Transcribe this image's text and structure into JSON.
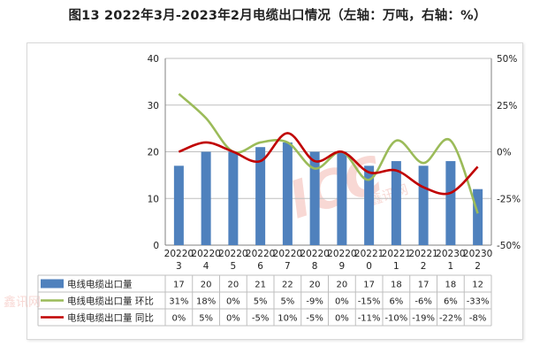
{
  "title": "图13  2022年3月-2023年2月电缆出口情况（左轴：万吨，右轴：%）",
  "watermark": {
    "main": "ICC",
    "sub": "鑫讯网"
  },
  "colors": {
    "bar": "#4f81bd",
    "mom": "#9bbb59",
    "yoy": "#c00000",
    "grid": "#bfbfbf",
    "axis": "#808080"
  },
  "chart_data": {
    "type": "bar",
    "categories": [
      [
        "20220",
        "3"
      ],
      [
        "20220",
        "4"
      ],
      [
        "20220",
        "5"
      ],
      [
        "20220",
        "6"
      ],
      [
        "20220",
        "7"
      ],
      [
        "20220",
        "8"
      ],
      [
        "20220",
        "9"
      ],
      [
        "20221",
        "0"
      ],
      [
        "20221",
        "1"
      ],
      [
        "20221",
        "2"
      ],
      [
        "20230",
        "1"
      ],
      [
        "20230",
        "2"
      ]
    ],
    "left_axis": {
      "ylim": [
        0,
        40
      ],
      "ticks": [
        "0",
        "10",
        "20",
        "30",
        "40"
      ]
    },
    "right_axis": {
      "ylim": [
        -50,
        50
      ],
      "ticks": [
        "-50%",
        "-25%",
        "0%",
        "25%",
        "50%"
      ]
    },
    "grid": true,
    "legend": "table-below",
    "series": [
      {
        "name": "电线电缆出口量",
        "type": "bar",
        "axis": "left",
        "values": [
          17,
          20,
          20,
          21,
          22,
          20,
          20,
          17,
          18,
          17,
          18,
          12
        ],
        "labels": [
          "17",
          "20",
          "20",
          "21",
          "22",
          "20",
          "20",
          "17",
          "18",
          "17",
          "18",
          "12"
        ]
      },
      {
        "name": "电线电缆出口量  环比",
        "type": "line",
        "axis": "right",
        "values": [
          31,
          18,
          0,
          5,
          5,
          -9,
          0,
          -15,
          6,
          -6,
          6,
          -33
        ],
        "labels": [
          "31%",
          "18%",
          "0%",
          "5%",
          "5%",
          "-9%",
          "0%",
          "-15%",
          "6%",
          "-6%",
          "6%",
          "-33%"
        ]
      },
      {
        "name": "电线电缆出口量  同比",
        "type": "line",
        "axis": "right",
        "values": [
          0,
          5,
          0,
          -5,
          10,
          -5,
          0,
          -11,
          -10,
          -19,
          -22,
          -8
        ],
        "labels": [
          "0%",
          "5%",
          "0%",
          "-5%",
          "10%",
          "-5%",
          "0%",
          "-11%",
          "-10%",
          "-19%",
          "-22%",
          "-8%"
        ]
      }
    ]
  }
}
